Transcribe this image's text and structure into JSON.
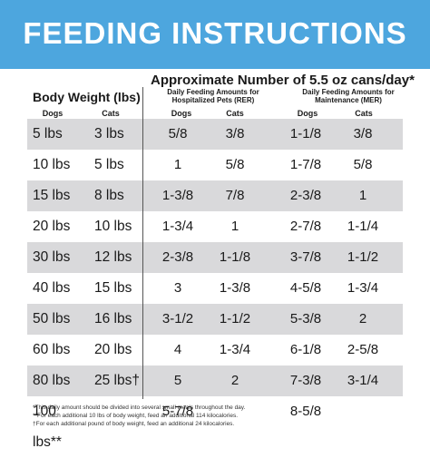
{
  "banner": {
    "title": "FEEDING INSTRUCTIONS",
    "color": "#4da6de"
  },
  "header": {
    "approx": "Approximate Number of 5.5 oz cans/day*",
    "body_weight": "Body Weight (lbs)",
    "dogs": "Dogs",
    "cats": "Cats",
    "rer_line1": "Daily Feeding Amounts for",
    "rer_line2": "Hospitalized Pets (RER)",
    "mer_line1": "Daily Feeding Amounts for",
    "mer_line2": "Maintenance (MER)"
  },
  "rows": [
    {
      "dog_w": "5 lbs",
      "cat_w": "3 lbs",
      "rer_dog": "5/8",
      "rer_cat": "3/8",
      "mer_dog": "1-1/8",
      "mer_cat": "3/8"
    },
    {
      "dog_w": "10 lbs",
      "cat_w": "5 lbs",
      "rer_dog": "1",
      "rer_cat": "5/8",
      "mer_dog": "1-7/8",
      "mer_cat": "5/8"
    },
    {
      "dog_w": "15 lbs",
      "cat_w": "8 lbs",
      "rer_dog": "1-3/8",
      "rer_cat": "7/8",
      "mer_dog": "2-3/8",
      "mer_cat": "1"
    },
    {
      "dog_w": "20 lbs",
      "cat_w": "10 lbs",
      "rer_dog": "1-3/4",
      "rer_cat": "1",
      "mer_dog": "2-7/8",
      "mer_cat": "1-1/4"
    },
    {
      "dog_w": "30 lbs",
      "cat_w": "12 lbs",
      "rer_dog": "2-3/8",
      "rer_cat": "1-1/8",
      "mer_dog": "3-7/8",
      "mer_cat": "1-1/2"
    },
    {
      "dog_w": "40 lbs",
      "cat_w": "15 lbs",
      "rer_dog": "3",
      "rer_cat": "1-3/8",
      "mer_dog": "4-5/8",
      "mer_cat": "1-3/4"
    },
    {
      "dog_w": "50 lbs",
      "cat_w": "16 lbs",
      "rer_dog": "3-1/2",
      "rer_cat": "1-1/2",
      "mer_dog": "5-3/8",
      "mer_cat": "2"
    },
    {
      "dog_w": "60 lbs",
      "cat_w": "20 lbs",
      "rer_dog": "4",
      "rer_cat": "1-3/4",
      "mer_dog": "6-1/8",
      "mer_cat": "2-5/8"
    },
    {
      "dog_w": "80 lbs",
      "cat_w": "25 lbs†",
      "rer_dog": "5",
      "rer_cat": "2",
      "mer_dog": "7-3/8",
      "mer_cat": "3-1/4"
    },
    {
      "dog_w": "100 lbs**",
      "cat_w": "",
      "rer_dog": "5-7/8",
      "rer_cat": "",
      "mer_dog": "8-5/8",
      "mer_cat": ""
    }
  ],
  "footnotes": [
    "*This daily amount should be divided into several small meals throughout the day.",
    "**For each additional 10 lbs of body weight, feed an additional 114 kilocalories.",
    "†For each additional pound of body weight, feed an additional 24 kilocalories."
  ],
  "colors": {
    "shade": "#d9d9db",
    "banner": "#4da6de"
  }
}
